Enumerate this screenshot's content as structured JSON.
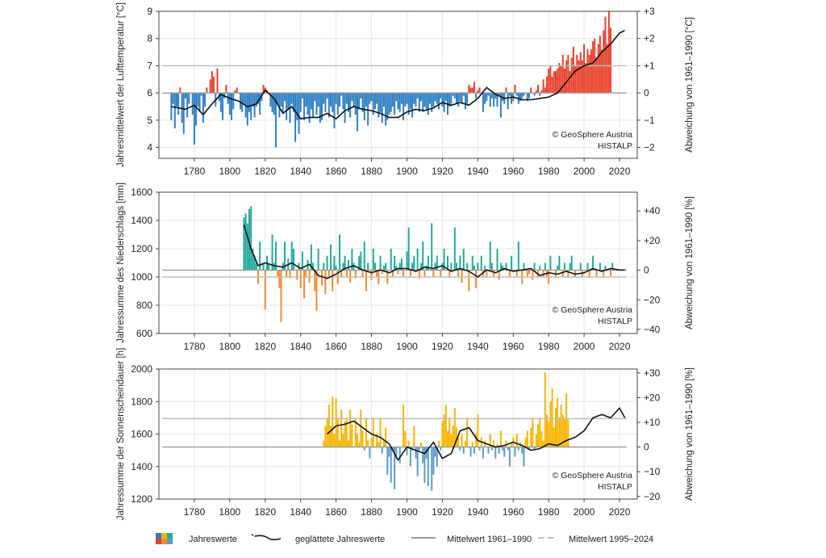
{
  "legend": {
    "annual_values": "Jahreswerte",
    "smoothed": "geglättete Jahreswerte",
    "mean_1961_1990": "Mittelwert 1961–1990",
    "mean_1995_2024": "Mittelwert 1995–2024"
  },
  "chart_data": [
    {
      "id": "temperature",
      "type": "bar",
      "ylabel": "Jahresmittelwert der Lufttemperatur [°C]",
      "y2label": "Abweichung von 1961–1990 [°C]",
      "ylim": [
        3.6,
        9.0
      ],
      "yticks": [
        4,
        5,
        6,
        7,
        8,
        9
      ],
      "y2ticks": [
        "−2",
        "−1",
        "0",
        "+1",
        "+2",
        "+3"
      ],
      "xlim": [
        1760,
        2030
      ],
      "xticks": [
        1780,
        1800,
        1820,
        1840,
        1860,
        1880,
        1900,
        1920,
        1940,
        1960,
        1980,
        2000,
        2020
      ],
      "baseline": 6.0,
      "mean_1961_1990": 6.0,
      "mean_1995_2024": 7.0,
      "series_start": 1767,
      "positive_color": "#e8402a",
      "negative_color": "#2e7fc2",
      "copyright": "© GeoSphere Austria",
      "source": "HISTALP",
      "smoothed": {
        "x": [
          1767,
          1775,
          1780,
          1785,
          1790,
          1795,
          1800,
          1805,
          1810,
          1815,
          1820,
          1825,
          1830,
          1835,
          1840,
          1845,
          1850,
          1855,
          1860,
          1865,
          1870,
          1875,
          1880,
          1885,
          1890,
          1895,
          1900,
          1905,
          1910,
          1915,
          1920,
          1925,
          1930,
          1935,
          1940,
          1945,
          1950,
          1955,
          1960,
          1965,
          1970,
          1975,
          1980,
          1985,
          1990,
          1995,
          2000,
          2005,
          2010,
          2015,
          2020,
          2023
        ],
        "y": [
          5.5,
          5.4,
          5.55,
          5.2,
          5.6,
          5.95,
          5.8,
          5.7,
          5.5,
          5.6,
          6.1,
          5.8,
          5.25,
          5.5,
          5.05,
          5.1,
          5.1,
          5.25,
          5.05,
          5.35,
          5.5,
          5.4,
          5.35,
          5.25,
          5.1,
          5.1,
          5.3,
          5.4,
          5.35,
          5.45,
          5.65,
          5.55,
          5.65,
          5.55,
          5.8,
          6.2,
          5.95,
          5.8,
          5.85,
          5.75,
          5.75,
          5.8,
          5.85,
          6.0,
          6.4,
          6.8,
          7.0,
          7.1,
          7.5,
          7.8,
          8.2,
          8.3
        ]
      },
      "annual": [
        5.0,
        5.6,
        4.7,
        5.5,
        5.2,
        6.2,
        4.9,
        4.5,
        5.8,
        5.1,
        5.6,
        6.0,
        5.2,
        4.1,
        4.8,
        5.5,
        5.3,
        5.9,
        4.9,
        5.5,
        6.2,
        6.0,
        6.5,
        6.8,
        6.6,
        5.5,
        6.9,
        5.7,
        5.3,
        5.0,
        5.8,
        6.3,
        5.6,
        5.2,
        5.0,
        5.4,
        6.1,
        6.2,
        6.0,
        5.4,
        5.3,
        5.6,
        5.1,
        4.8,
        5.3,
        5.0,
        5.5,
        5.1,
        5.5,
        5.6,
        5.2,
        5.7,
        6.3,
        6.2,
        6.1,
        6.0,
        5.5,
        5.3,
        5.2,
        4.0,
        5.6,
        5.1,
        5.5,
        5.3,
        5.7,
        5.0,
        5.4,
        4.9,
        5.6,
        5.3,
        4.2,
        5.0,
        4.5,
        5.3,
        5.8,
        5.0,
        5.5,
        5.2,
        4.9,
        5.4,
        5.1,
        5.7,
        5.2,
        5.5,
        4.9,
        5.0,
        5.6,
        5.3,
        5.8,
        5.1,
        5.5,
        5.3,
        4.7,
        5.6,
        5.2,
        5.5,
        5.9,
        5.4,
        4.9,
        5.6,
        5.3,
        5.1,
        5.7,
        5.5,
        5.2,
        4.6,
        5.4,
        5.8,
        5.3,
        5.0,
        5.5,
        4.8,
        5.6,
        5.7,
        5.2,
        5.4,
        5.6,
        5.1,
        5.3,
        4.9,
        5.5,
        4.8,
        5.0,
        5.2,
        5.3,
        5.5,
        5.2,
        5.7,
        5.4,
        5.3,
        5.6,
        5.0,
        5.5,
        5.6,
        5.2,
        5.4,
        5.1,
        5.6,
        5.5,
        5.8,
        5.3,
        5.7,
        5.3,
        5.5,
        5.4,
        5.2,
        5.6,
        5.3,
        5.5,
        5.7,
        5.6,
        5.4,
        5.8,
        5.5,
        5.3,
        5.7,
        5.2,
        5.5,
        5.6,
        5.9,
        5.8,
        5.6,
        5.5,
        5.7,
        5.6,
        5.9,
        5.4,
        5.6,
        6.3,
        6.2,
        6.2,
        6.4,
        5.8,
        6.1,
        6.2,
        6.0,
        5.3,
        5.6,
        5.7,
        5.9,
        5.5,
        5.8,
        5.5,
        5.8,
        5.5,
        5.9,
        5.1,
        5.7,
        5.6,
        6.2,
        5.4,
        5.9,
        5.6,
        5.7,
        6.3,
        5.9,
        5.6,
        5.7,
        5.8,
        5.9,
        6.0,
        5.7,
        5.8,
        6.2,
        6.0,
        5.9,
        6.1,
        6.3,
        5.9,
        6.1,
        6.5,
        6.2,
        6.6,
        6.9,
        7.0,
        6.6,
        6.8,
        6.8,
        6.9,
        7.1,
        7.0,
        7.4,
        6.9,
        7.2,
        7.4,
        6.8,
        7.3,
        7.7,
        7.0,
        7.4,
        7.2,
        7.5,
        7.2,
        7.8,
        7.1,
        7.6,
        7.4,
        7.6,
        7.9,
        8.0,
        7.3,
        7.8,
        8.1,
        7.6,
        8.3,
        8.8,
        7.8,
        9.0,
        8.4
      ]
    },
    {
      "id": "precipitation",
      "type": "bar",
      "ylabel": "Jahressumme des Niederschlags [mm]",
      "y2label": "Abweichung von 1961–1990 [%]",
      "ylim": [
        600,
        1600
      ],
      "yticks": [
        600,
        800,
        1000,
        1200,
        1400,
        1600
      ],
      "y2ticks": [
        "−40",
        "−20",
        "0",
        "+20",
        "+40"
      ],
      "xlim": [
        1760,
        2030
      ],
      "xticks": [
        1780,
        1800,
        1820,
        1840,
        1860,
        1880,
        1900,
        1920,
        1940,
        1960,
        1980,
        2000,
        2020
      ],
      "baseline": 1048,
      "mean_1961_1990": 1048,
      "mean_1995_2024": 1000,
      "series_start": 1808,
      "positive_color": "#23a89a",
      "negative_color": "#f08a2c",
      "copyright": "© GeoSphere Austria",
      "source": "HISTALP",
      "smoothed": {
        "x": [
          1808,
          1812,
          1816,
          1820,
          1825,
          1830,
          1835,
          1840,
          1845,
          1850,
          1855,
          1860,
          1865,
          1870,
          1875,
          1880,
          1885,
          1890,
          1895,
          1900,
          1905,
          1910,
          1915,
          1920,
          1925,
          1930,
          1935,
          1940,
          1945,
          1950,
          1955,
          1960,
          1965,
          1970,
          1975,
          1980,
          1985,
          1990,
          1995,
          2000,
          2005,
          2010,
          2015,
          2020,
          2023
        ],
        "y": [
          1370,
          1200,
          1080,
          1100,
          1080,
          1070,
          1100,
          1060,
          1090,
          1010,
          990,
          1020,
          1060,
          1080,
          1050,
          1030,
          1050,
          1030,
          1060,
          1060,
          1040,
          1070,
          1060,
          1080,
          1040,
          1060,
          1040,
          1000,
          1050,
          1030,
          1060,
          1040,
          1050,
          1060,
          1010,
          1030,
          1020,
          1040,
          1020,
          1030,
          1060,
          1040,
          1060,
          1050,
          1050
        ]
      },
      "annual": [
        1420,
        1450,
        1380,
        1480,
        1500,
        1200,
        1150,
        1100,
        950,
        1250,
        1050,
        1100,
        770,
        1150,
        1100,
        1050,
        1300,
        1100,
        1250,
        1000,
        920,
        680,
        1100,
        1250,
        1000,
        1130,
        990,
        1250,
        1200,
        1050,
        980,
        1100,
        920,
        1180,
        850,
        1000,
        1120,
        960,
        1230,
        1100,
        900,
        760,
        1200,
        1050,
        940,
        1100,
        880,
        1150,
        1000,
        1230,
        900,
        1150,
        1080,
        950,
        1300,
        1000,
        1100,
        1150,
        1000,
        1120,
        960,
        1200,
        1100,
        990,
        1050,
        1150,
        1180,
        1000,
        1250,
        900,
        1100,
        1050,
        980,
        1200,
        1100,
        1000,
        950,
        1150,
        1020,
        1080,
        1100,
        950,
        1050,
        1200,
        1000,
        1150,
        1080,
        1020,
        1100,
        1130,
        1000,
        1050,
        1180,
        1350,
        1000,
        1100,
        1150,
        1050,
        1200,
        990,
        1100,
        1250,
        1000,
        1080,
        1150,
        1050,
        1380,
        1000,
        1100,
        1150,
        1050,
        1000,
        1100,
        1200,
        1050,
        1150,
        1000,
        1100,
        1050,
        1350,
        1100,
        1000,
        1150,
        960,
        1200,
        1050,
        1100,
        900,
        1050,
        1150,
        1080,
        920,
        1100,
        1050,
        1150,
        1000,
        1080,
        1000,
        1050,
        1250,
        1100,
        1000,
        1050,
        1200,
        980,
        1100,
        1080,
        1050,
        1100,
        1050,
        1000,
        1150,
        1050,
        1050,
        1000,
        1250,
        1050,
        950,
        1100,
        1050,
        1000,
        1020,
        1050,
        980,
        1100,
        1050,
        1000,
        1080,
        1050,
        1000,
        1100,
        1000,
        950,
        1150,
        1050,
        1050,
        1000,
        1080,
        1150,
        1050,
        1000,
        1100,
        1050,
        1000,
        1100,
        1150,
        1050,
        1000,
        1050,
        1050,
        1100,
        1000,
        1050,
        1050,
        1100,
        1000,
        1050,
        1150,
        1050,
        1000,
        1050,
        1100,
        1050,
        1000,
        1080,
        1050,
        1050,
        1000,
        1100,
        1050
      ]
    },
    {
      "id": "sunshine",
      "type": "bar",
      "ylabel": "Jahressumme der Sonnenscheindauer [h]",
      "y2label": "Abweichung von 1961–1990 [%]",
      "ylim": [
        1200,
        2000
      ],
      "yticks": [
        1200,
        1400,
        1600,
        1800,
        2000
      ],
      "y2ticks": [
        "−20",
        "−10",
        "0",
        "+10",
        "+20",
        "+30"
      ],
      "xlim": [
        1760,
        2030
      ],
      "xticks": [
        1780,
        1800,
        1820,
        1840,
        1860,
        1880,
        1900,
        1920,
        1940,
        1960,
        1980,
        2000,
        2020
      ],
      "baseline": 1520,
      "mean_1961_1990": 1520,
      "mean_1995_2024": 1695,
      "series_start": 1853,
      "positive_color": "#f7b500",
      "negative_color": "#5b9bc8",
      "copyright": "© GeoSphere Austria",
      "source": "HISTALP",
      "smoothed": {
        "x": [
          1855,
          1860,
          1865,
          1870,
          1875,
          1880,
          1885,
          1890,
          1895,
          1900,
          1905,
          1910,
          1915,
          1920,
          1925,
          1930,
          1935,
          1940,
          1945,
          1950,
          1955,
          1960,
          1965,
          1970,
          1975,
          1980,
          1985,
          1990,
          1995,
          2000,
          2005,
          2010,
          2015,
          2020,
          2023
        ],
        "y": [
          1600,
          1650,
          1660,
          1680,
          1640,
          1600,
          1580,
          1540,
          1440,
          1520,
          1500,
          1480,
          1550,
          1450,
          1480,
          1620,
          1640,
          1560,
          1540,
          1520,
          1530,
          1550,
          1530,
          1500,
          1510,
          1540,
          1530,
          1560,
          1580,
          1620,
          1700,
          1720,
          1700,
          1760,
          1700
        ]
      },
      "annual": [
        1560,
        1650,
        1700,
        1780,
        1650,
        1830,
        1600,
        1820,
        1700,
        1560,
        1750,
        1600,
        1680,
        1700,
        1560,
        1750,
        1660,
        1520,
        1700,
        1600,
        1550,
        1750,
        1620,
        1500,
        1700,
        1560,
        1450,
        1580,
        1700,
        1520,
        1600,
        1550,
        1700,
        1480,
        1560,
        1640,
        1350,
        1460,
        1300,
        1500,
        1260,
        1450,
        1520,
        1420,
        1520,
        1780,
        1620,
        1470,
        1560,
        1400,
        1500,
        1650,
        1450,
        1340,
        1500,
        1550,
        1420,
        1300,
        1450,
        1280,
        1520,
        1250,
        1350,
        1460,
        1400,
        1560,
        1500,
        1680,
        1720,
        1780,
        1620,
        1700,
        1600,
        1650,
        1760,
        1640,
        1580,
        1500,
        1600,
        1480,
        1560,
        1700,
        1520,
        1460,
        1550,
        1480,
        1600,
        1720,
        1500,
        1580,
        1450,
        1560,
        1520,
        1480,
        1600,
        1500,
        1560,
        1450,
        1540,
        1480,
        1620,
        1500,
        1460,
        1560,
        1500,
        1400,
        1540,
        1580,
        1460,
        1600,
        1500,
        1550,
        1480,
        1400,
        1580,
        1620,
        1500,
        1640,
        1700,
        1500,
        1600,
        1660,
        1700,
        1620,
        1560,
        1980,
        1720,
        1680,
        1800,
        1880,
        1640,
        1760,
        1820,
        1700,
        1780,
        1720,
        1700,
        1850,
        1690
      ]
    }
  ]
}
